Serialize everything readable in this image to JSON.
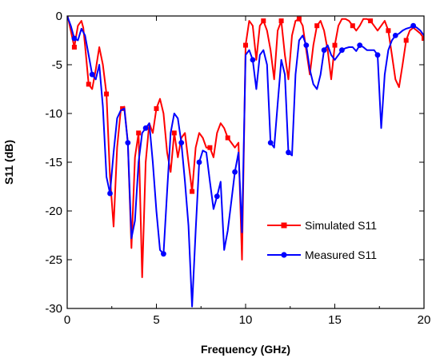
{
  "chart_data": {
    "type": "line",
    "title": "",
    "xlabel": "Frequency (GHz)",
    "ylabel": "S11 (dB)",
    "xlim": [
      0,
      20
    ],
    "ylim": [
      -30,
      0
    ],
    "xticks": [
      0,
      5,
      10,
      15,
      20
    ],
    "yticks": [
      0,
      -5,
      -10,
      -15,
      -20,
      -25,
      -30
    ],
    "xtick_labels": [
      "0",
      "5",
      "10",
      "15",
      "20"
    ],
    "ytick_labels": [
      "0",
      "-5",
      "-10",
      "-15",
      "-20",
      "-25",
      "-30"
    ],
    "grid": false,
    "legend_position": "lower-right",
    "series": [
      {
        "name": "Simulated S11",
        "color": "#ff0000",
        "marker": "square",
        "x": [
          0.0,
          0.2,
          0.4,
          0.6,
          0.8,
          0.9,
          1.0,
          1.2,
          1.4,
          1.6,
          1.8,
          2.0,
          2.2,
          2.4,
          2.6,
          2.8,
          3.0,
          3.1,
          3.2,
          3.4,
          3.6,
          3.8,
          4.0,
          4.2,
          4.4,
          4.6,
          4.8,
          5.0,
          5.2,
          5.4,
          5.6,
          5.8,
          6.0,
          6.2,
          6.4,
          6.6,
          6.8,
          7.0,
          7.2,
          7.4,
          7.6,
          7.8,
          8.0,
          8.2,
          8.4,
          8.6,
          8.8,
          9.0,
          9.2,
          9.4,
          9.6,
          9.8,
          10.0,
          10.2,
          10.4,
          10.6,
          10.8,
          11.0,
          11.2,
          11.4,
          11.6,
          11.8,
          12.0,
          12.2,
          12.4,
          12.6,
          12.8,
          13.0,
          13.2,
          13.4,
          13.6,
          13.8,
          14.0,
          14.2,
          14.4,
          14.6,
          14.8,
          15.0,
          15.2,
          15.4,
          15.6,
          15.8,
          16.0,
          16.2,
          16.4,
          16.6,
          16.8,
          17.0,
          17.2,
          17.4,
          17.6,
          17.8,
          18.0,
          18.2,
          18.4,
          18.6,
          18.8,
          19.0,
          19.2,
          19.4,
          19.6,
          19.8,
          20.0
        ],
        "y": [
          0.2,
          -1.5,
          -3.2,
          -1.0,
          -0.5,
          -1.2,
          -3.0,
          -7.0,
          -7.5,
          -5.5,
          -3.2,
          -5.0,
          -8.0,
          -16.5,
          -21.6,
          -13.5,
          -9.7,
          -9.5,
          -9.3,
          -13.0,
          -23.8,
          -14.5,
          -12.0,
          -26.8,
          -15.0,
          -11.0,
          -12.0,
          -9.5,
          -8.5,
          -10.0,
          -14.0,
          -16.0,
          -12.0,
          -14.5,
          -12.5,
          -12.0,
          -15.0,
          -18.0,
          -13.5,
          -12.0,
          -12.5,
          -13.5,
          -13.5,
          -14.5,
          -12.0,
          -11.0,
          -11.5,
          -12.5,
          -13.0,
          -13.5,
          -13.0,
          -25.0,
          -3.0,
          -0.5,
          -1.0,
          -4.5,
          -1.0,
          -0.5,
          -1.5,
          -3.5,
          -6.5,
          -1.5,
          -0.5,
          -4.0,
          -6.5,
          -2.0,
          -0.5,
          -0.3,
          -1.0,
          -3.5,
          -6.0,
          -3.0,
          -1.0,
          -0.5,
          -1.5,
          -3.5,
          -6.5,
          -3.0,
          -1.0,
          -0.3,
          -0.3,
          -0.5,
          -1.0,
          -1.5,
          -1.0,
          -0.3,
          -0.3,
          -0.5,
          -1.0,
          -1.5,
          -1.0,
          -0.5,
          -1.5,
          -4.0,
          -6.5,
          -7.3,
          -5.0,
          -2.5,
          -1.5,
          -1.2,
          -1.5,
          -1.8,
          -2.3
        ]
      },
      {
        "name": "Measured S11",
        "color": "#0000ff",
        "marker": "circle",
        "x": [
          0.0,
          0.2,
          0.4,
          0.6,
          0.8,
          1.0,
          1.2,
          1.4,
          1.6,
          1.8,
          2.0,
          2.2,
          2.4,
          2.6,
          2.8,
          3.0,
          3.2,
          3.4,
          3.6,
          3.8,
          4.0,
          4.2,
          4.4,
          4.6,
          4.8,
          5.0,
          5.2,
          5.4,
          5.6,
          5.8,
          6.0,
          6.2,
          6.4,
          6.6,
          6.8,
          7.0,
          7.2,
          7.4,
          7.6,
          7.8,
          8.0,
          8.2,
          8.4,
          8.6,
          8.8,
          9.0,
          9.2,
          9.4,
          9.6,
          9.8,
          10.0,
          10.2,
          10.4,
          10.6,
          10.8,
          11.0,
          11.2,
          11.4,
          11.6,
          11.8,
          12.0,
          12.2,
          12.4,
          12.6,
          12.8,
          13.0,
          13.2,
          13.4,
          13.6,
          13.8,
          14.0,
          14.2,
          14.4,
          14.6,
          14.8,
          15.0,
          15.2,
          15.4,
          15.6,
          15.8,
          16.0,
          16.2,
          16.4,
          16.6,
          16.8,
          17.0,
          17.2,
          17.4,
          17.6,
          17.8,
          18.0,
          18.2,
          18.4,
          18.6,
          18.8,
          19.0,
          19.2,
          19.4,
          19.6,
          19.8,
          20.0
        ],
        "y": [
          0.0,
          -1.0,
          -2.3,
          -2.5,
          -1.3,
          -2.0,
          -4.0,
          -6.0,
          -6.5,
          -5.0,
          -9.3,
          -16.5,
          -18.2,
          -14.0,
          -10.5,
          -9.7,
          -9.5,
          -13.0,
          -22.8,
          -21.0,
          -15.0,
          -12.0,
          -11.5,
          -11.0,
          -15.0,
          -20.0,
          -24.0,
          -24.4,
          -18.0,
          -12.0,
          -10.0,
          -10.5,
          -13.0,
          -17.0,
          -21.5,
          -29.8,
          -22.0,
          -15.0,
          -13.8,
          -14.0,
          -17.0,
          -19.8,
          -18.5,
          -17.0,
          -24.0,
          -22.0,
          -19.0,
          -16.0,
          -14.0,
          -22.2,
          -4.0,
          -3.5,
          -4.5,
          -7.5,
          -4.0,
          -3.5,
          -5.0,
          -13.0,
          -13.5,
          -9.0,
          -4.5,
          -6.0,
          -14.0,
          -14.3,
          -6.0,
          -2.5,
          -2.0,
          -3.0,
          -5.5,
          -7.0,
          -7.5,
          -6.0,
          -3.5,
          -3.0,
          -4.0,
          -4.5,
          -4.0,
          -3.5,
          -3.3,
          -3.2,
          -3.2,
          -3.6,
          -3.0,
          -3.2,
          -3.5,
          -3.5,
          -3.5,
          -4.0,
          -11.5,
          -6.0,
          -3.5,
          -2.5,
          -2.0,
          -1.8,
          -1.5,
          -1.3,
          -1.2,
          -1.0,
          -1.2,
          -1.5,
          -2.0
        ]
      }
    ],
    "markers_every": 1
  }
}
